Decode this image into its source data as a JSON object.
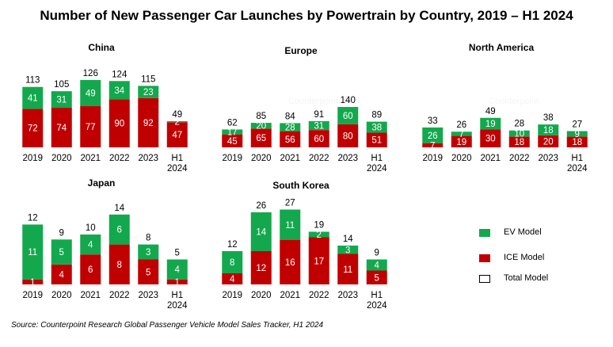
{
  "title": "Number of New Passenger Car Launches by Powertrain by Country, 2019 – H1 2024",
  "source": "Source: Counterpoint Research Global Passenger Vehicle Model Sales Tracker, H1 2024",
  "watermark": "Counterpoint",
  "legend": [
    {
      "label": "EV Model",
      "color": "#13a84d"
    },
    {
      "label": "ICE Model",
      "color": "#c00000"
    },
    {
      "label": "Total Model",
      "color": "#ffffff"
    }
  ],
  "colors": {
    "ev": "#13a84d",
    "ice": "#c00000"
  },
  "chart_data": [
    {
      "type": "bar",
      "title": "China",
      "categories": [
        "2019",
        "2020",
        "2021",
        "2022",
        "2023",
        "H1 2024"
      ],
      "series": [
        {
          "name": "ICE Model",
          "values": [
            72,
            74,
            77,
            90,
            92,
            47
          ]
        },
        {
          "name": "EV Model",
          "values": [
            41,
            31,
            49,
            34,
            23,
            2
          ]
        }
      ],
      "totals": [
        113,
        105,
        126,
        124,
        115,
        49
      ]
    },
    {
      "type": "bar",
      "title": "Europe",
      "categories": [
        "2019",
        "2020",
        "2021",
        "2022",
        "2023",
        "H1 2024"
      ],
      "series": [
        {
          "name": "ICE Model",
          "values": [
            45,
            65,
            56,
            60,
            80,
            51
          ]
        },
        {
          "name": "EV Model",
          "values": [
            17,
            20,
            28,
            31,
            60,
            38
          ]
        }
      ],
      "totals": [
        62,
        85,
        84,
        91,
        140,
        89
      ]
    },
    {
      "type": "bar",
      "title": "North America",
      "categories": [
        "2019",
        "2020",
        "2021",
        "2022",
        "2023",
        "H1 2024"
      ],
      "series": [
        {
          "name": "ICE Model",
          "values": [
            7,
            19,
            30,
            18,
            20,
            18
          ]
        },
        {
          "name": "EV Model",
          "values": [
            26,
            7,
            19,
            10,
            18,
            9
          ]
        }
      ],
      "totals": [
        33,
        26,
        49,
        28,
        38,
        27
      ]
    },
    {
      "type": "bar",
      "title": "Japan",
      "categories": [
        "2019",
        "2020",
        "2021",
        "2022",
        "2023",
        "H1 2024"
      ],
      "series": [
        {
          "name": "ICE Model",
          "values": [
            1,
            4,
            6,
            8,
            5,
            1
          ]
        },
        {
          "name": "EV Model",
          "values": [
            11,
            5,
            4,
            6,
            3,
            4
          ]
        }
      ],
      "totals": [
        12,
        9,
        10,
        14,
        8,
        5
      ]
    },
    {
      "type": "bar",
      "title": "South Korea",
      "categories": [
        "2019",
        "2020",
        "2021",
        "2022",
        "2023",
        "H1 2024"
      ],
      "series": [
        {
          "name": "ICE Model",
          "values": [
            4,
            12,
            16,
            17,
            11,
            5
          ]
        },
        {
          "name": "EV Model",
          "values": [
            8,
            14,
            11,
            2,
            3,
            4
          ]
        }
      ],
      "totals": [
        12,
        26,
        27,
        19,
        14,
        9
      ]
    }
  ]
}
